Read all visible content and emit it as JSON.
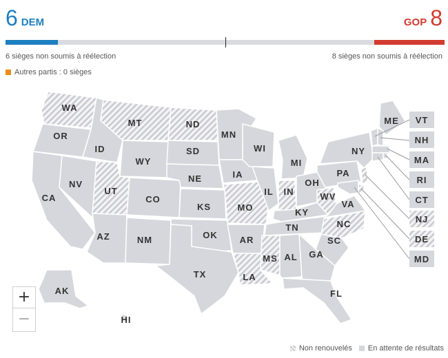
{
  "dem": {
    "seats": "6",
    "label": "DEM",
    "note": "6 sièges non soumis à réélection",
    "color": "#1d7fbf",
    "seat_fraction": 0.12
  },
  "gop": {
    "seats": "8",
    "label": "GOP",
    "note": "8 sièges non soumis à réélection",
    "color": "#d23a2f",
    "seat_fraction": 0.16
  },
  "other_parties": {
    "label": "Autres partis : 0 sièges",
    "color": "#e98c1d"
  },
  "legend": {
    "not_renewed": "Non renouvelés",
    "pending": "En attente de résultats"
  },
  "zoom": {
    "in_label": "+",
    "out_label": "−"
  },
  "colors": {
    "pending": "#d6d7dc",
    "hatch": "#c9cad0",
    "border": "#ffffff",
    "label": "#333333"
  },
  "map": {
    "states": [
      {
        "abbr": "WA",
        "status": "not_renewed"
      },
      {
        "abbr": "OR",
        "status": "pending"
      },
      {
        "abbr": "CA",
        "status": "pending"
      },
      {
        "abbr": "NV",
        "status": "pending"
      },
      {
        "abbr": "ID",
        "status": "pending"
      },
      {
        "abbr": "MT",
        "status": "not_renewed"
      },
      {
        "abbr": "WY",
        "status": "pending"
      },
      {
        "abbr": "UT",
        "status": "not_renewed"
      },
      {
        "abbr": "AZ",
        "status": "pending"
      },
      {
        "abbr": "CO",
        "status": "pending"
      },
      {
        "abbr": "NM",
        "status": "pending"
      },
      {
        "abbr": "ND",
        "status": "not_renewed"
      },
      {
        "abbr": "SD",
        "status": "pending"
      },
      {
        "abbr": "NE",
        "status": "pending"
      },
      {
        "abbr": "KS",
        "status": "pending"
      },
      {
        "abbr": "OK",
        "status": "pending"
      },
      {
        "abbr": "TX",
        "status": "pending"
      },
      {
        "abbr": "MN",
        "status": "pending"
      },
      {
        "abbr": "IA",
        "status": "pending"
      },
      {
        "abbr": "MO",
        "status": "not_renewed"
      },
      {
        "abbr": "AR",
        "status": "pending"
      },
      {
        "abbr": "LA",
        "status": "not_renewed"
      },
      {
        "abbr": "WI",
        "status": "pending"
      },
      {
        "abbr": "IL",
        "status": "pending"
      },
      {
        "abbr": "MS",
        "status": "not_renewed"
      },
      {
        "abbr": "MI",
        "status": "pending"
      },
      {
        "abbr": "IN",
        "status": "not_renewed"
      },
      {
        "abbr": "KY",
        "status": "pending"
      },
      {
        "abbr": "TN",
        "status": "pending"
      },
      {
        "abbr": "AL",
        "status": "pending"
      },
      {
        "abbr": "OH",
        "status": "pending"
      },
      {
        "abbr": "WV",
        "status": "not_renewed"
      },
      {
        "abbr": "VA",
        "status": "pending"
      },
      {
        "abbr": "NC",
        "status": "not_renewed"
      },
      {
        "abbr": "SC",
        "status": "pending"
      },
      {
        "abbr": "GA",
        "status": "pending"
      },
      {
        "abbr": "FL",
        "status": "pending"
      },
      {
        "abbr": "PA",
        "status": "pending"
      },
      {
        "abbr": "NY",
        "status": "pending"
      },
      {
        "abbr": "ME",
        "status": "pending"
      },
      {
        "abbr": "AK",
        "status": "pending"
      },
      {
        "abbr": "HI",
        "status": "pending"
      }
    ],
    "small_states": [
      {
        "abbr": "VT",
        "status": "pending"
      },
      {
        "abbr": "NH",
        "status": "pending"
      },
      {
        "abbr": "MA",
        "status": "pending"
      },
      {
        "abbr": "RI",
        "status": "pending"
      },
      {
        "abbr": "CT",
        "status": "pending"
      },
      {
        "abbr": "NJ",
        "status": "not_renewed"
      },
      {
        "abbr": "DE",
        "status": "not_renewed"
      },
      {
        "abbr": "MD",
        "status": "pending"
      }
    ]
  }
}
